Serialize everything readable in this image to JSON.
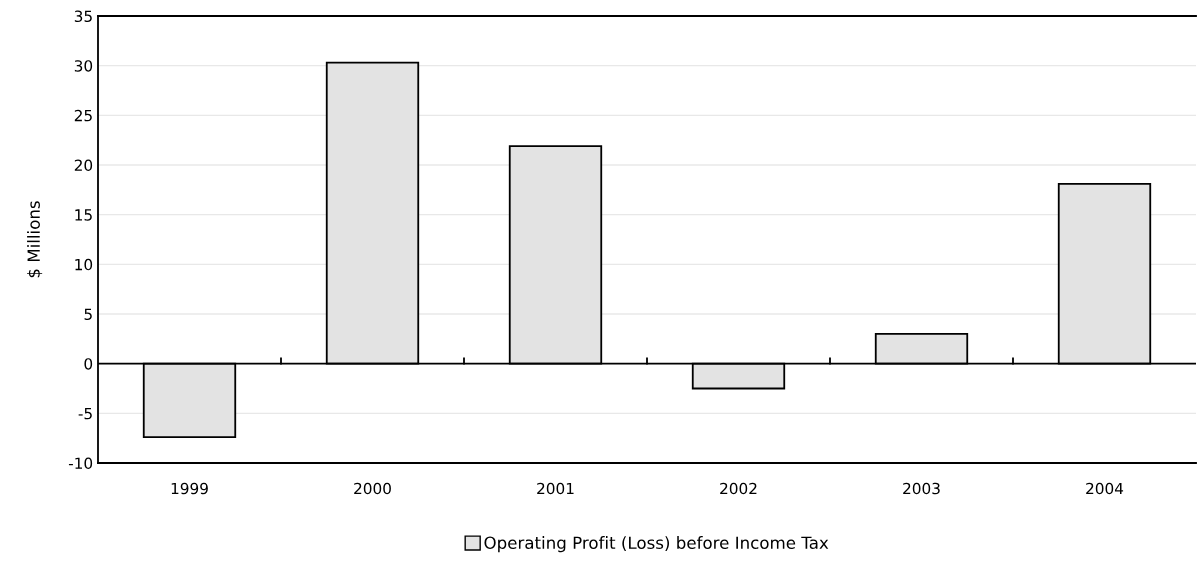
{
  "chart_data": {
    "type": "bar",
    "ylabel": "$ Millions",
    "categories": [
      "1999",
      "2000",
      "2001",
      "2002",
      "2003",
      "2004"
    ],
    "series": [
      {
        "name": "Operating Profit (Loss) before Income Tax",
        "color": "#e3e3e3",
        "values": [
          -7.4,
          30.3,
          21.9,
          -2.5,
          3.0,
          18.1
        ]
      }
    ],
    "ylim": [
      -10,
      35
    ],
    "yticks": [
      -10,
      -5,
      0,
      5,
      10,
      15,
      20,
      25,
      30,
      35
    ],
    "grid": "y",
    "legend": "bottom"
  }
}
